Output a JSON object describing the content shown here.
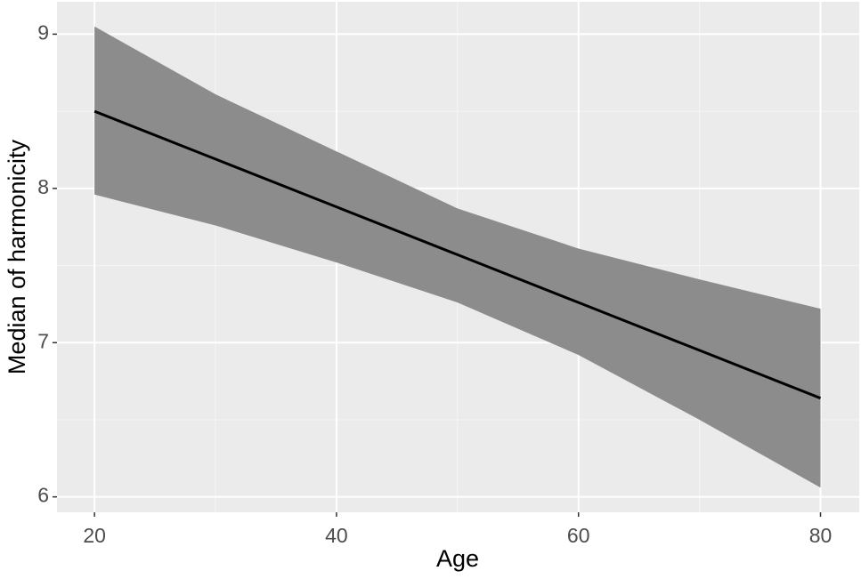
{
  "chart_data": {
    "type": "line",
    "x_label": "Age",
    "y_label": "Median of harmonicity",
    "x": [
      20,
      30,
      40,
      50,
      60,
      70,
      80
    ],
    "values": [
      8.5,
      8.19,
      7.88,
      7.57,
      7.26,
      6.95,
      6.64
    ],
    "lower": [
      7.96,
      7.76,
      7.52,
      7.26,
      6.92,
      6.5,
      6.06
    ],
    "upper": [
      9.05,
      8.61,
      8.24,
      7.87,
      7.61,
      7.41,
      7.22
    ],
    "color": "#000000",
    "band_color": "#8c8c8c",
    "xlim": [
      16.9,
      83.2
    ],
    "ylim": [
      5.9,
      9.21
    ],
    "xticks": [
      20,
      40,
      60,
      80
    ],
    "yticks": [
      6,
      7,
      8,
      9
    ],
    "x_minor_ticks": [
      30,
      50,
      70
    ],
    "y_minor_ticks": [
      6.5,
      7.5,
      8.5
    ],
    "grid": true
  }
}
